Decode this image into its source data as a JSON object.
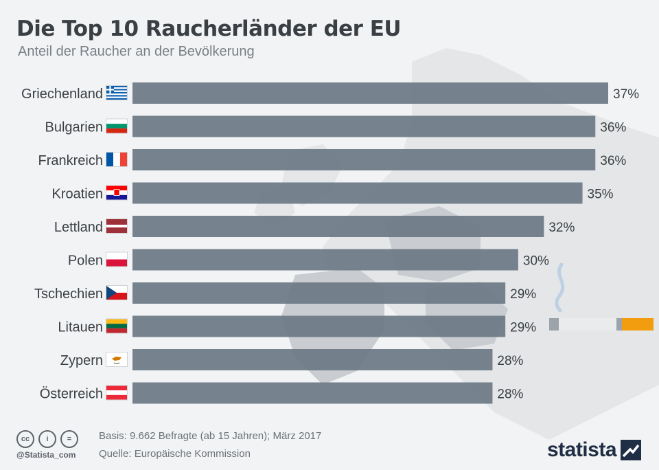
{
  "header": {
    "title": "Die Top 10 Raucherländer der EU",
    "subtitle": "Anteil der Raucher an der Bevölkerung"
  },
  "chart_data": {
    "type": "bar",
    "orientation": "horizontal",
    "title": "Die Top 10 Raucherländer der EU",
    "subtitle": "Anteil der Raucher an der Bevölkerung",
    "categories": [
      "Griechenland",
      "Bulgarien",
      "Frankreich",
      "Kroatien",
      "Lettland",
      "Polen",
      "Tschechien",
      "Litauen",
      "Zypern",
      "Österreich"
    ],
    "values": [
      37,
      36,
      36,
      35,
      32,
      30,
      29,
      29,
      28,
      28
    ],
    "value_labels": [
      "37%",
      "36%",
      "36%",
      "35%",
      "32%",
      "30%",
      "29%",
      "29%",
      "28%",
      "28%"
    ],
    "flags": [
      "greece-flag",
      "bulgaria-flag",
      "france-flag",
      "croatia-flag",
      "latvia-flag",
      "poland-flag",
      "czechia-flag",
      "lithuania-flag",
      "cyprus-flag",
      "austria-flag"
    ],
    "unit": "%",
    "xlim": [
      0,
      37
    ],
    "grid": false,
    "legend": "none",
    "bar_color": "#6b7883"
  },
  "footer": {
    "basis": "Basis: 9.662 Befragte (ab 15 Jahren); März 2017",
    "source": "Quelle: Europäische Kommission",
    "handle": "@Statista_com",
    "brand": "statista",
    "license_icons": [
      "cc-icon",
      "by-icon",
      "nd-icon"
    ]
  }
}
